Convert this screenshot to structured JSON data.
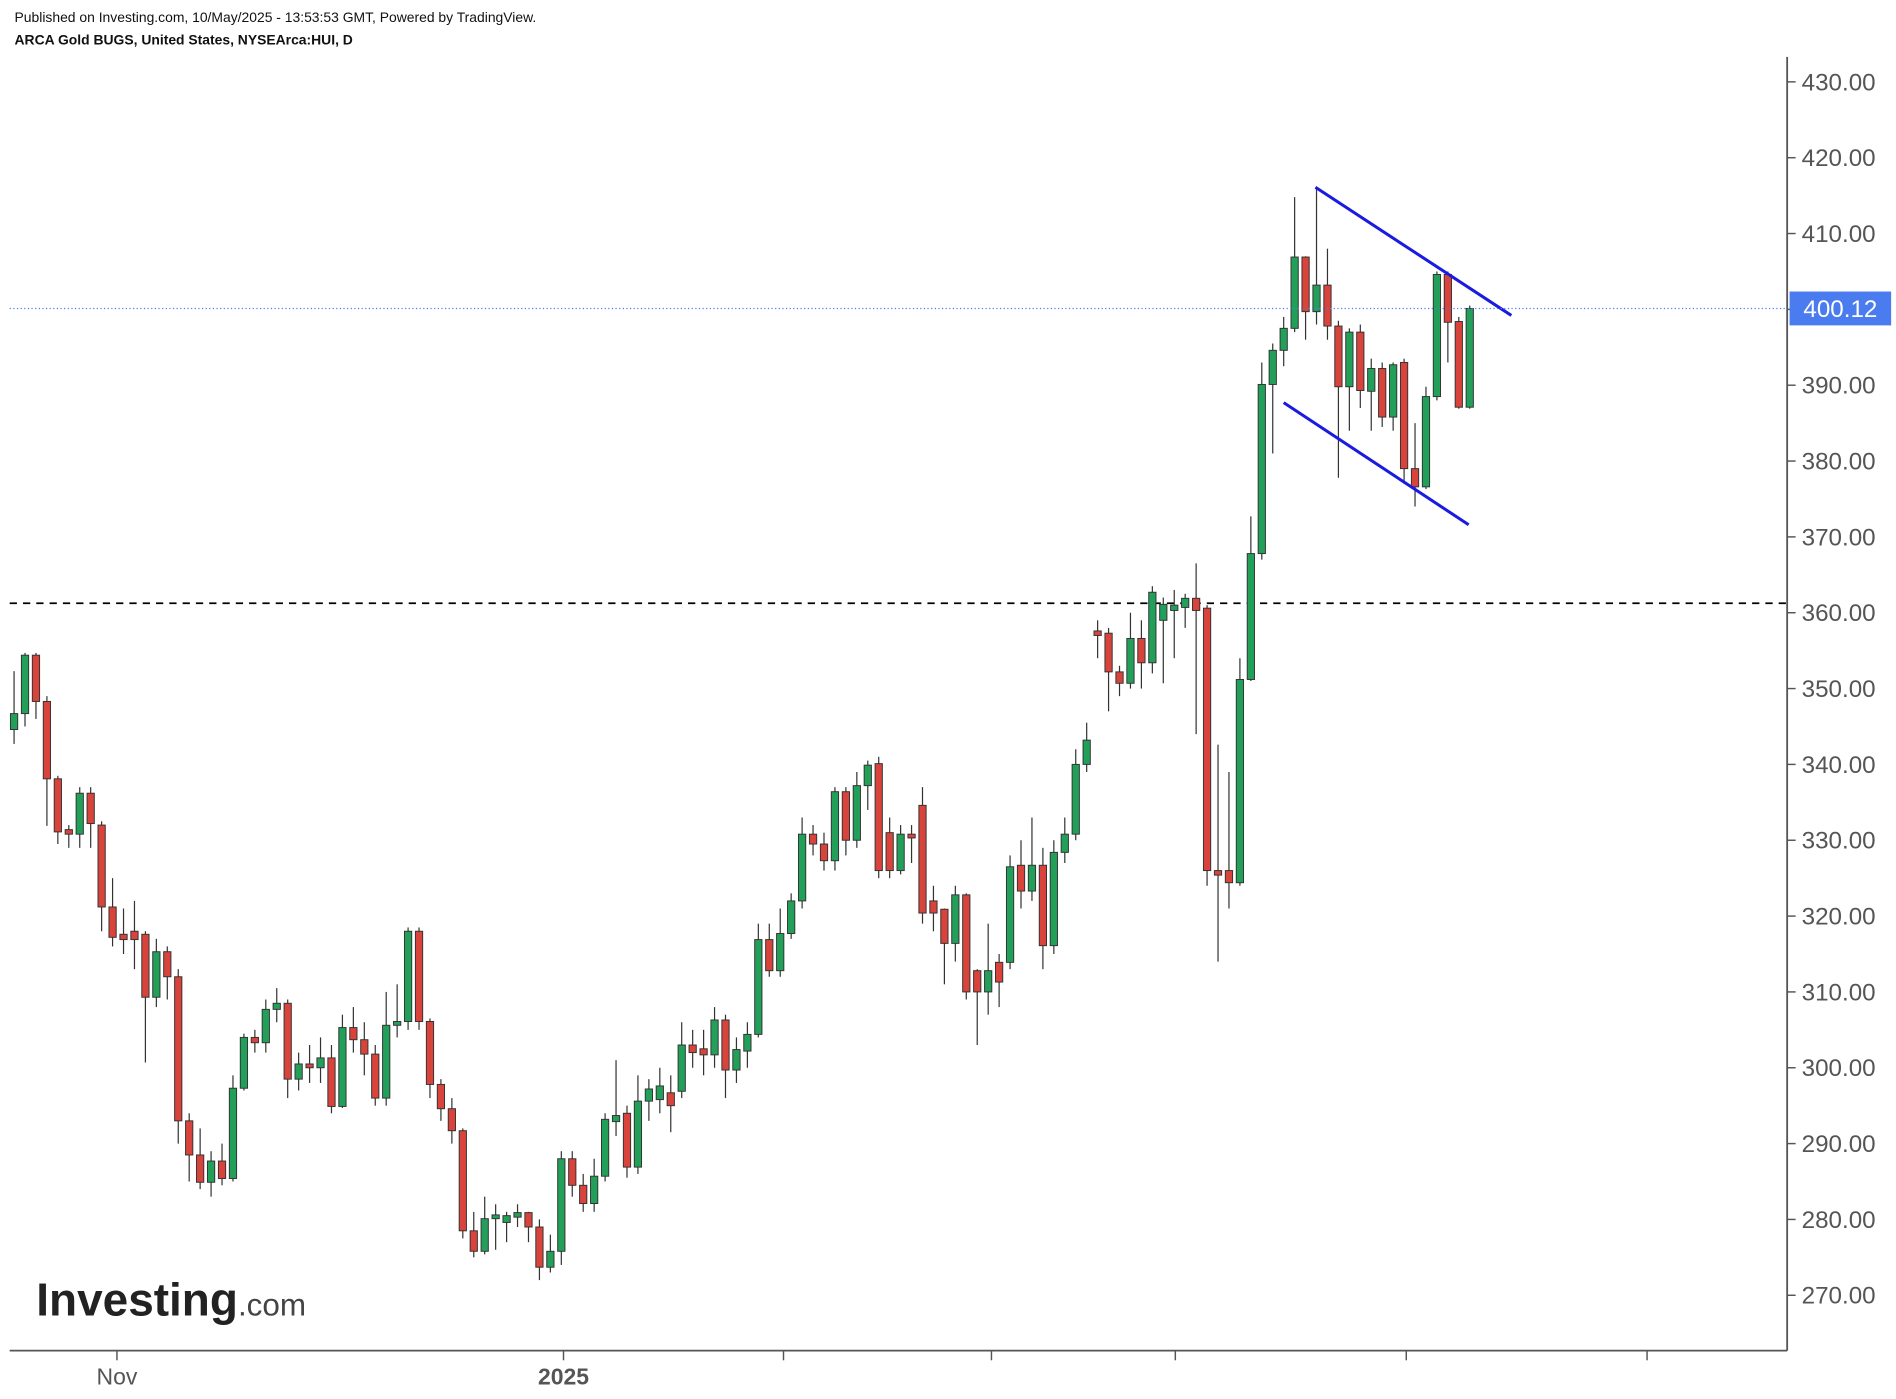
{
  "header": {
    "line1": "Published on Investing.com, 10/May/2025 - 13:53:53 GMT, Powered by TradingView.",
    "line2": "ARCA Gold BUGS, United States, NYSEArca:HUI, D"
  },
  "logo": {
    "name": "Investing",
    "suffix": ".com"
  },
  "chart_data": {
    "type": "candlestick",
    "up_color": "#22a05a",
    "down_color": "#d8433b",
    "border_color": "#333333",
    "x": [
      0,
      1,
      2,
      3,
      4,
      5,
      6,
      7,
      8,
      9,
      10,
      11,
      12,
      13,
      14,
      15,
      16,
      17,
      18,
      19,
      20,
      21,
      22,
      23,
      24,
      25,
      26,
      27,
      28,
      29,
      30,
      31,
      32,
      33,
      34,
      35,
      36,
      37,
      38,
      39,
      40,
      41,
      42,
      43,
      44,
      45,
      46,
      47,
      48,
      49,
      50,
      51,
      52,
      53,
      54,
      55,
      56,
      57,
      58,
      59,
      60,
      61,
      62,
      63,
      64,
      65,
      66,
      67,
      68,
      69,
      70,
      71,
      72,
      73,
      74,
      75,
      76,
      77,
      78,
      79,
      80,
      81,
      82,
      83,
      84,
      85,
      86,
      87,
      88,
      89,
      90,
      91,
      92,
      93,
      94,
      95,
      96,
      97,
      98,
      99,
      100,
      101,
      102,
      103,
      104,
      105,
      106,
      107,
      108,
      109,
      110,
      111,
      112,
      113,
      114,
      115,
      116,
      117,
      118,
      119,
      120,
      121,
      122,
      123,
      124,
      125,
      126,
      127,
      128,
      129,
      130,
      131,
      132,
      133
    ],
    "open": [
      344.6,
      346.7,
      354.4,
      348.3,
      338.1,
      331.4,
      330.8,
      336.2,
      332,
      321.2,
      317.6,
      318,
      317.6,
      309.3,
      315.3,
      312,
      293,
      288.5,
      284.9,
      287.7,
      285.4,
      297.3,
      304,
      303.3,
      307.7,
      308.5,
      298.5,
      300.5,
      300,
      301.3,
      294.9,
      305.3,
      303.7,
      301.8,
      296,
      305.6,
      306.1,
      318,
      306.1,
      297.8,
      294.6,
      291.7,
      278.5,
      275.8,
      280.1,
      279.6,
      280.3,
      280.9,
      279,
      273.7,
      275.8,
      288,
      284.5,
      282.1,
      285.7,
      292.9,
      294,
      286.9,
      295.6,
      295.8,
      296.7,
      296.9,
      303,
      302.5,
      301.7,
      306.3,
      299.7,
      302.2,
      304.4,
      316.9,
      312.8,
      317.7,
      322,
      330.8,
      329.5,
      327.3,
      336.4,
      330,
      337.2,
      340.1,
      331,
      326,
      330.8,
      334.6,
      322,
      320.9,
      316.4,
      322.8,
      312.8,
      310,
      313.9,
      313.9,
      326.7,
      323.3,
      326.7,
      316.1,
      328.4,
      330.8,
      340,
      357.6,
      357.3,
      352.2,
      350.7,
      356.6,
      353.4,
      359,
      360.3,
      360.7,
      361.9,
      360.6,
      326,
      326,
      324.4,
      351.2,
      367.8,
      390.1,
      394.6,
      397.5,
      406.9,
      399.7,
      403.2,
      397.8,
      389.8,
      397,
      389.2,
      392.2,
      385.8,
      393,
      379,
      376.6,
      388.5,
      404.6,
      398.4,
      387.1
    ],
    "high": [
      352.3,
      354.7,
      354.7,
      349,
      338.5,
      332,
      337,
      337,
      332.5,
      325,
      321,
      322,
      318,
      317,
      316,
      313,
      294,
      292,
      289,
      290,
      299,
      304.5,
      305,
      309,
      310.5,
      309,
      302,
      303,
      304,
      303,
      307,
      308,
      306,
      303,
      310,
      311,
      318.5,
      318.5,
      306.5,
      298.5,
      296,
      292,
      281,
      283,
      282,
      281,
      282,
      281,
      280,
      278,
      289,
      289,
      286,
      288,
      294,
      301,
      295,
      299,
      298.5,
      300,
      299,
      306,
      305,
      305,
      308,
      307,
      304,
      306,
      319,
      319,
      321,
      323,
      333,
      332,
      331,
      337,
      337,
      339,
      340.5,
      341,
      333,
      332,
      332,
      337,
      324,
      321,
      324,
      323,
      313,
      319,
      315,
      328,
      330,
      333,
      329,
      330,
      333,
      342,
      345.5,
      359,
      358,
      353,
      360,
      359,
      363.5,
      362,
      363,
      362.5,
      366.5,
      361,
      342.6,
      339,
      354,
      372.7,
      393,
      395.5,
      399,
      414.8,
      407,
      416,
      408,
      398.5,
      397.5,
      398,
      393.5,
      393,
      393,
      393.5,
      385,
      389.8,
      405,
      405,
      399,
      400.5
    ],
    "low": [
      342.7,
      345,
      346,
      331.9,
      329.5,
      329,
      329,
      329,
      318,
      316,
      315,
      313,
      300.7,
      308,
      309,
      290,
      285,
      284,
      283,
      284.5,
      285,
      297,
      302,
      302,
      306,
      296,
      297,
      298,
      298,
      294,
      294.7,
      302,
      299,
      295,
      295,
      304,
      305,
      305,
      296,
      293,
      290,
      277.5,
      275,
      275.4,
      276,
      277,
      279,
      277,
      272,
      273,
      274,
      283,
      281,
      281,
      285,
      291,
      285.5,
      286,
      293,
      294,
      291.5,
      296,
      300,
      299,
      300,
      296,
      298,
      300,
      304,
      312,
      312,
      317,
      321,
      328,
      326,
      326,
      328,
      329,
      334,
      325,
      325,
      325.5,
      327,
      319,
      318,
      311,
      314,
      309,
      303,
      307,
      308,
      313,
      321,
      322,
      313,
      315,
      327,
      330,
      339,
      354,
      347,
      349,
      350,
      350,
      352,
      350.7,
      354,
      358,
      344,
      324,
      314,
      321,
      324,
      351,
      367,
      381,
      392.5,
      397,
      396,
      398,
      396,
      377.8,
      384,
      387,
      384,
      384.5,
      384,
      377,
      374,
      376.3,
      388,
      393,
      386.9,
      386.9
    ],
    "close": [
      346.7,
      354.4,
      348.3,
      338.1,
      331.1,
      330.8,
      336.2,
      332.2,
      321.2,
      317.2,
      316.9,
      316.9,
      309.3,
      315.3,
      312,
      293,
      288.5,
      284.9,
      287.7,
      285.4,
      297.3,
      304,
      303.3,
      307.7,
      308.5,
      298.5,
      300.5,
      300,
      301.3,
      294.9,
      305.3,
      303.7,
      301.8,
      296,
      305.6,
      306.1,
      318,
      306.1,
      297.8,
      294.6,
      291.7,
      278.5,
      275.8,
      280.1,
      280.6,
      280.5,
      280.9,
      279,
      273.7,
      275.8,
      288,
      284.5,
      282.1,
      285.7,
      293.2,
      293.7,
      286.9,
      295.6,
      297.2,
      297.6,
      295,
      303,
      302,
      301.7,
      306.3,
      299.7,
      302.4,
      304.4,
      316.9,
      312.8,
      317.7,
      322,
      330.8,
      329.5,
      327.3,
      336.4,
      330,
      337.2,
      339.9,
      326,
      326,
      330.8,
      330.3,
      320.4,
      320.4,
      316.4,
      322.8,
      310,
      310,
      312.8,
      311.3,
      326.5,
      323.3,
      326.7,
      316.1,
      328.4,
      330.8,
      340,
      343.2,
      357,
      352.2,
      350.7,
      356.6,
      353.4,
      362.7,
      361.1,
      361,
      361.9,
      360.3,
      326,
      325.4,
      324.4,
      351.2,
      367.8,
      390.1,
      394.6,
      397.5,
      406.9,
      399.7,
      403.2,
      397.8,
      389.8,
      397,
      389.3,
      392.2,
      385.8,
      392.7,
      379,
      376.6,
      388.5,
      404.6,
      398.3,
      387.1,
      400.12
    ],
    "xlim": [
      -0.4,
      162
    ],
    "xticks": [
      {
        "value": 9.4,
        "label": "Nov"
      },
      {
        "value": 50.2,
        "label": "2025"
      },
      {
        "value": 70.3,
        "label": null
      },
      {
        "value": 89.3,
        "label": null
      },
      {
        "value": 106.1,
        "label": null
      },
      {
        "value": 127.2,
        "label": null
      },
      {
        "value": 149.2,
        "label": null
      }
    ],
    "ylim": [
      262.7,
      433.3
    ],
    "yticks": [
      {
        "value": 270,
        "label": "270.00"
      },
      {
        "value": 280,
        "label": "280.00"
      },
      {
        "value": 290,
        "label": "290.00"
      },
      {
        "value": 300,
        "label": "300.00"
      },
      {
        "value": 310,
        "label": "310.00"
      },
      {
        "value": 320,
        "label": "320.00"
      },
      {
        "value": 330,
        "label": "330.00"
      },
      {
        "value": 340,
        "label": "340.00"
      },
      {
        "value": 350,
        "label": "350.00"
      },
      {
        "value": 360,
        "label": "360.00"
      },
      {
        "value": 370,
        "label": "370.00"
      },
      {
        "value": 380,
        "label": "380.00"
      },
      {
        "value": 390,
        "label": "390.00"
      },
      {
        "value": 400,
        "label": "400.00"
      },
      {
        "value": 410,
        "label": "410.00"
      },
      {
        "value": 420,
        "label": "420.00"
      },
      {
        "value": 430,
        "label": "430.00"
      }
    ],
    "last_price_color": "#4a7cf0",
    "hlines": [
      {
        "value": 361.25,
        "color": "#000000"
      }
    ],
    "trendlines": [
      {
        "x": [
          118.9,
          136.8
        ],
        "y": [
          416.1,
          399.2
        ],
        "color": "#1a1ae0"
      },
      {
        "x": [
          116.0,
          132.9
        ],
        "y": [
          387.7,
          371.6
        ],
        "color": "#1a1ae0"
      }
    ]
  }
}
